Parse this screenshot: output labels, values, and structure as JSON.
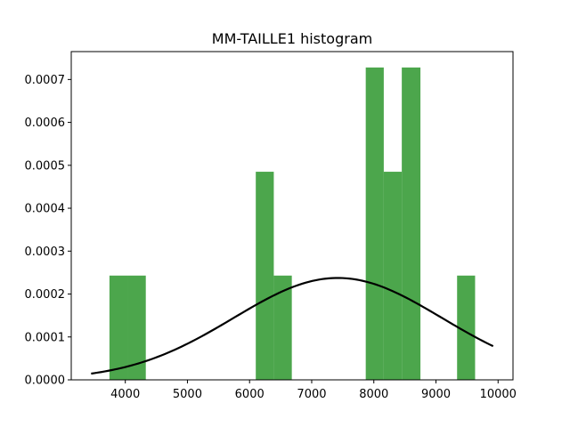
{
  "chart_data": {
    "type": "bar",
    "title": "MM-TAILLE1 histogram",
    "xlabel": "",
    "ylabel": "",
    "xlim": [
      3130,
      10240
    ],
    "ylim": [
      0,
      0.000765
    ],
    "xticks": [
      4000,
      5000,
      6000,
      7000,
      8000,
      9000,
      10000
    ],
    "yticks": [
      0.0,
      0.0001,
      0.0002,
      0.0003,
      0.0004,
      0.0005,
      0.0006,
      0.0007
    ],
    "ytick_labels": [
      "0.0000",
      "0.0001",
      "0.0002",
      "0.0003",
      "0.0004",
      "0.0005",
      "0.0006",
      "0.0007"
    ],
    "grid": false,
    "bar_color": "#4ca64c",
    "bins": [
      {
        "x0": 3745,
        "x1": 4040,
        "value": 0.000243
      },
      {
        "x0": 4040,
        "x1": 4330,
        "value": 0.000243
      },
      {
        "x0": 6100,
        "x1": 6390,
        "value": 0.000485
      },
      {
        "x0": 6390,
        "x1": 6680,
        "value": 0.000243
      },
      {
        "x0": 7870,
        "x1": 8160,
        "value": 0.000728
      },
      {
        "x0": 8160,
        "x1": 8450,
        "value": 0.000485
      },
      {
        "x0": 8450,
        "x1": 8750,
        "value": 0.000728
      },
      {
        "x0": 9340,
        "x1": 9630,
        "value": 0.000243
      }
    ],
    "curve": {
      "type": "normal_pdf",
      "color": "#000000",
      "x_range": [
        3450,
        9920
      ],
      "mean": 7420,
      "std": 1680
    }
  }
}
